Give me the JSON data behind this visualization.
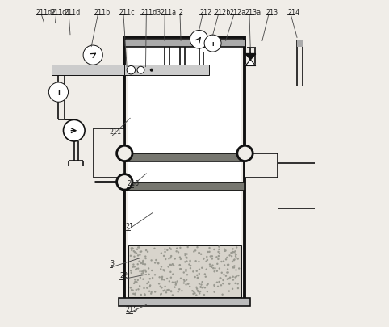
{
  "bg_color": "#f0ede8",
  "line_color": "#444444",
  "dark_line": "#111111",
  "label_color": "#222222",
  "figsize": [
    4.82,
    4.06
  ],
  "dpi": 100,
  "top_labels": {
    "211d2": [
      0.012,
      0.975,
      0.038,
      0.93
    ],
    "211d1": [
      0.058,
      0.975,
      0.072,
      0.93
    ],
    "211d": [
      0.1,
      0.975,
      0.118,
      0.895
    ],
    "211b": [
      0.19,
      0.975,
      0.183,
      0.858
    ],
    "211c": [
      0.268,
      0.975,
      0.292,
      0.796
    ],
    "211d3": [
      0.335,
      0.975,
      0.35,
      0.796
    ],
    "211a": [
      0.395,
      0.975,
      0.408,
      0.876
    ],
    "2": [
      0.452,
      0.975,
      0.458,
      0.876
    ],
    "212": [
      0.515,
      0.975,
      0.514,
      0.908
    ],
    "212b": [
      0.56,
      0.975,
      0.556,
      0.893
    ],
    "212a": [
      0.608,
      0.975,
      0.596,
      0.876
    ],
    "213a": [
      0.655,
      0.975,
      0.672,
      0.84
    ],
    "213": [
      0.718,
      0.975,
      0.708,
      0.876
    ],
    "214": [
      0.785,
      0.975,
      0.815,
      0.886
    ]
  },
  "body_labels": {
    "211": [
      0.238,
      0.598,
      0.302,
      0.638
    ],
    "210": [
      0.292,
      0.438,
      0.352,
      0.468
    ],
    "21": [
      0.288,
      0.308,
      0.372,
      0.348
    ],
    "3": [
      0.24,
      0.193,
      0.332,
      0.208
    ],
    "22": [
      0.27,
      0.156,
      0.352,
      0.158
    ],
    "215": [
      0.288,
      0.052,
      0.352,
      0.065
    ]
  }
}
